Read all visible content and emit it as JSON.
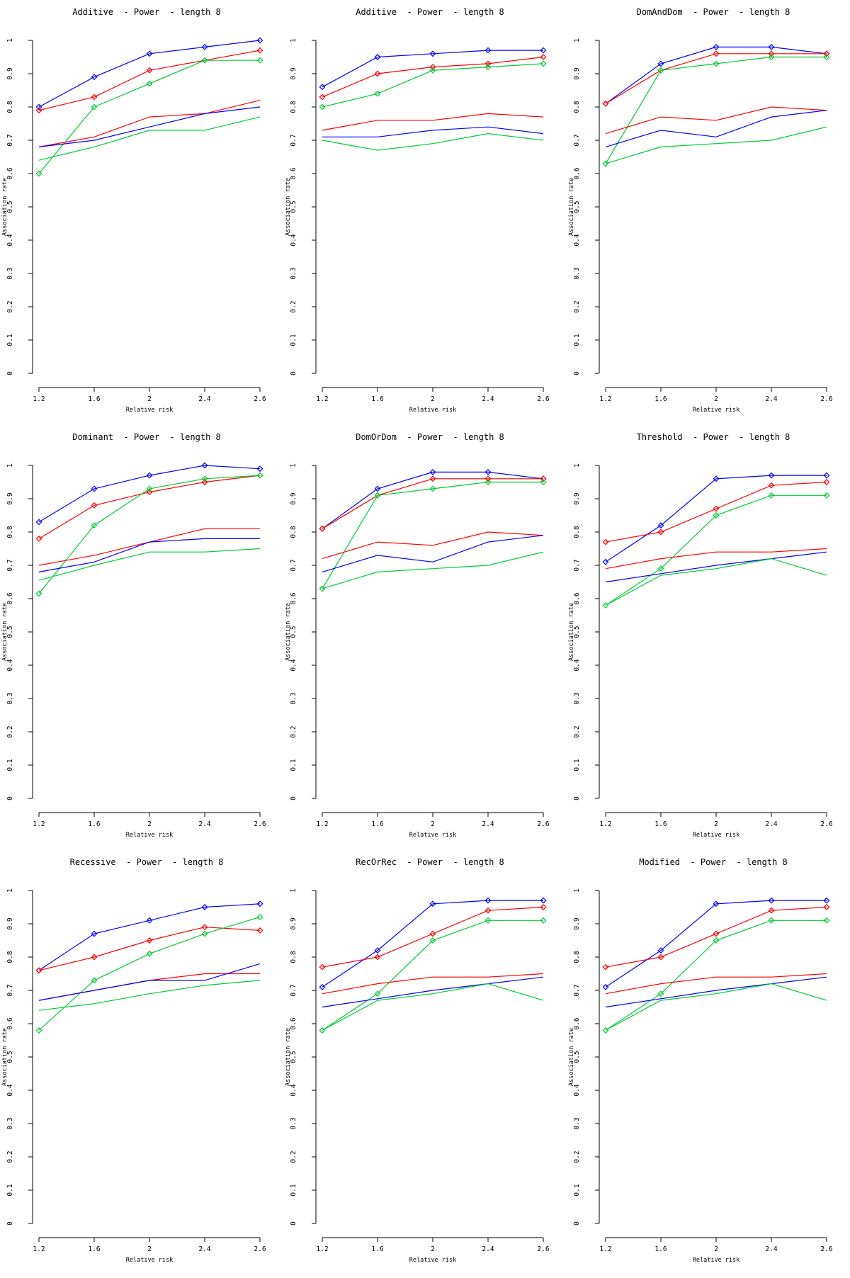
{
  "page": {
    "background": "#ffffff",
    "description": "3x3 grid of R power-simulation line plots"
  },
  "colors": {
    "blue": "#0000FF",
    "red": "#FF0000",
    "green": "#00CC33",
    "axis": "#000000"
  },
  "axes_shared": {
    "xlabel": "Relative risk",
    "ylabel": "Association rate",
    "x_tick_labels": [
      "1.2",
      "1.6",
      "2",
      "2.4",
      "2.6"
    ],
    "y_tick_labels": [
      "0",
      "0.1",
      "0.2",
      "0.3",
      "0.4",
      "0.5",
      "0.6",
      "0.7",
      "0.8",
      "0.9",
      "1"
    ],
    "ylim": [
      0,
      1
    ],
    "grid": false,
    "legend": "none"
  },
  "chart_data": [
    {
      "type": "line",
      "title": "Additive  - Power  - length 8",
      "xlabel": "Relative risk",
      "ylabel": "Association rate",
      "x": [
        1.2,
        1.6,
        2,
        2.4,
        2.6
      ],
      "x_labels": [
        "1.2",
        "1.6",
        "2",
        "2.4",
        "2.6"
      ],
      "y_tick_labels": [
        "0",
        "0.1",
        "0.2",
        "0.3",
        "0.4",
        "0.5",
        "0.6",
        "0.7",
        "0.8",
        "0.9",
        "1"
      ],
      "ylim": [
        0,
        1
      ],
      "series": [
        {
          "name": "blue-diamond",
          "color": "#0000FF",
          "marker": "diamond",
          "values": [
            0.8,
            0.89,
            0.96,
            0.98,
            1.0
          ]
        },
        {
          "name": "red-diamond",
          "color": "#FF0000",
          "marker": "diamond",
          "values": [
            0.79,
            0.83,
            0.91,
            0.94,
            0.97
          ]
        },
        {
          "name": "green-diamond",
          "color": "#00CC33",
          "marker": "diamond",
          "values": [
            0.6,
            0.8,
            0.87,
            0.94,
            0.94
          ]
        },
        {
          "name": "red-line",
          "color": "#FF0000",
          "marker": "none",
          "values": [
            0.68,
            0.71,
            0.77,
            0.78,
            0.82
          ]
        },
        {
          "name": "blue-line",
          "color": "#0000FF",
          "marker": "none",
          "values": [
            0.68,
            0.7,
            0.74,
            0.78,
            0.8
          ]
        },
        {
          "name": "green-line",
          "color": "#00CC33",
          "marker": "none",
          "values": [
            0.64,
            0.68,
            0.73,
            0.73,
            0.77
          ]
        }
      ]
    },
    {
      "type": "line",
      "title": "Additive  - Power  - length 8",
      "xlabel": "Relative risk",
      "ylabel": "Association rate",
      "x": [
        1.2,
        1.6,
        2,
        2.4,
        2.6
      ],
      "x_labels": [
        "1.2",
        "1.6",
        "2",
        "2.4",
        "2.6"
      ],
      "y_tick_labels": [
        "0",
        "0.1",
        "0.2",
        "0.3",
        "0.4",
        "0.5",
        "0.6",
        "0.7",
        "0.8",
        "0.9",
        "1"
      ],
      "ylim": [
        0,
        1
      ],
      "series": [
        {
          "name": "blue-diamond",
          "color": "#0000FF",
          "marker": "diamond",
          "values": [
            0.86,
            0.95,
            0.96,
            0.97,
            0.97
          ]
        },
        {
          "name": "red-diamond",
          "color": "#FF0000",
          "marker": "diamond",
          "values": [
            0.83,
            0.9,
            0.92,
            0.93,
            0.95
          ]
        },
        {
          "name": "green-diamond",
          "color": "#00CC33",
          "marker": "diamond",
          "values": [
            0.8,
            0.84,
            0.91,
            0.92,
            0.93
          ]
        },
        {
          "name": "red-line",
          "color": "#FF0000",
          "marker": "none",
          "values": [
            0.73,
            0.76,
            0.76,
            0.78,
            0.77
          ]
        },
        {
          "name": "blue-line",
          "color": "#0000FF",
          "marker": "none",
          "values": [
            0.71,
            0.71,
            0.73,
            0.74,
            0.72
          ]
        },
        {
          "name": "green-line",
          "color": "#00CC33",
          "marker": "none",
          "values": [
            0.7,
            0.67,
            0.69,
            0.72,
            0.7
          ]
        }
      ]
    },
    {
      "type": "line",
      "title": "DomAndDom  - Power  - length 8",
      "xlabel": "Relative risk",
      "ylabel": "Association rate",
      "x": [
        1.2,
        1.6,
        2,
        2.4,
        2.6
      ],
      "x_labels": [
        "1.2",
        "1.6",
        "2",
        "2.4",
        "2.6"
      ],
      "y_tick_labels": [
        "0",
        "0.1",
        "0.2",
        "0.3",
        "0.4",
        "0.5",
        "0.6",
        "0.7",
        "0.8",
        "0.9",
        "1"
      ],
      "ylim": [
        0,
        1
      ],
      "series": [
        {
          "name": "blue-diamond",
          "color": "#0000FF",
          "marker": "diamond",
          "values": [
            0.81,
            0.93,
            0.98,
            0.98,
            0.96
          ]
        },
        {
          "name": "red-diamond",
          "color": "#FF0000",
          "marker": "diamond",
          "values": [
            0.81,
            0.91,
            0.96,
            0.96,
            0.96
          ]
        },
        {
          "name": "green-diamond",
          "color": "#00CC33",
          "marker": "diamond",
          "values": [
            0.63,
            0.91,
            0.93,
            0.95,
            0.95
          ]
        },
        {
          "name": "red-line",
          "color": "#FF0000",
          "marker": "none",
          "values": [
            0.72,
            0.77,
            0.76,
            0.8,
            0.79
          ]
        },
        {
          "name": "blue-line",
          "color": "#0000FF",
          "marker": "none",
          "values": [
            0.68,
            0.73,
            0.71,
            0.77,
            0.79
          ]
        },
        {
          "name": "green-line",
          "color": "#00CC33",
          "marker": "none",
          "values": [
            0.63,
            0.68,
            0.69,
            0.7,
            0.74
          ]
        }
      ]
    },
    {
      "type": "line",
      "title": "Dominant  - Power  - length 8",
      "xlabel": "Relative risk",
      "ylabel": "Association rate",
      "x": [
        1.2,
        1.6,
        2,
        2.4,
        2.6
      ],
      "x_labels": [
        "1.2",
        "1.6",
        "2",
        "2.4",
        "2.6"
      ],
      "y_tick_labels": [
        "0",
        "0.1",
        "0.2",
        "0.3",
        "0.4",
        "0.5",
        "0.6",
        "0.7",
        "0.8",
        "0.9",
        "1"
      ],
      "ylim": [
        0,
        1
      ],
      "series": [
        {
          "name": "blue-diamond",
          "color": "#0000FF",
          "marker": "diamond",
          "values": [
            0.83,
            0.93,
            0.97,
            1.0,
            0.99
          ]
        },
        {
          "name": "red-diamond",
          "color": "#FF0000",
          "marker": "diamond",
          "values": [
            0.78,
            0.88,
            0.92,
            0.95,
            0.97
          ]
        },
        {
          "name": "green-diamond",
          "color": "#00CC33",
          "marker": "diamond",
          "values": [
            0.615,
            0.82,
            0.93,
            0.96,
            0.97
          ]
        },
        {
          "name": "red-line",
          "color": "#FF0000",
          "marker": "none",
          "values": [
            0.7,
            0.73,
            0.77,
            0.81,
            0.81
          ]
        },
        {
          "name": "blue-line",
          "color": "#0000FF",
          "marker": "none",
          "values": [
            0.68,
            0.71,
            0.77,
            0.78,
            0.78
          ]
        },
        {
          "name": "green-line",
          "color": "#00CC33",
          "marker": "none",
          "values": [
            0.655,
            0.7,
            0.74,
            0.74,
            0.75
          ]
        }
      ]
    },
    {
      "type": "line",
      "title": "DomOrDom  - Power  - length 8",
      "xlabel": "Relative risk",
      "ylabel": "Association rate",
      "x": [
        1.2,
        1.6,
        2,
        2.4,
        2.6
      ],
      "x_labels": [
        "1.2",
        "1.6",
        "2",
        "2.4",
        "2.6"
      ],
      "y_tick_labels": [
        "0",
        "0.1",
        "0.2",
        "0.3",
        "0.4",
        "0.5",
        "0.6",
        "0.7",
        "0.8",
        "0.9",
        "1"
      ],
      "ylim": [
        0,
        1
      ],
      "series": [
        {
          "name": "blue-diamond",
          "color": "#0000FF",
          "marker": "diamond",
          "values": [
            0.81,
            0.93,
            0.98,
            0.98,
            0.96
          ]
        },
        {
          "name": "red-diamond",
          "color": "#FF0000",
          "marker": "diamond",
          "values": [
            0.81,
            0.91,
            0.96,
            0.96,
            0.96
          ]
        },
        {
          "name": "green-diamond",
          "color": "#00CC33",
          "marker": "diamond",
          "values": [
            0.63,
            0.91,
            0.93,
            0.95,
            0.95
          ]
        },
        {
          "name": "red-line",
          "color": "#FF0000",
          "marker": "none",
          "values": [
            0.72,
            0.77,
            0.76,
            0.8,
            0.79
          ]
        },
        {
          "name": "blue-line",
          "color": "#0000FF",
          "marker": "none",
          "values": [
            0.68,
            0.73,
            0.71,
            0.77,
            0.79
          ]
        },
        {
          "name": "green-line",
          "color": "#00CC33",
          "marker": "none",
          "values": [
            0.63,
            0.68,
            0.69,
            0.7,
            0.74
          ]
        }
      ]
    },
    {
      "type": "line",
      "title": "Threshold  - Power  - length 8",
      "xlabel": "Relative risk",
      "ylabel": "Association rate",
      "x": [
        1.2,
        1.6,
        2,
        2.4,
        2.6
      ],
      "x_labels": [
        "1.2",
        "1.6",
        "2",
        "2.4",
        "2.6"
      ],
      "y_tick_labels": [
        "0",
        "0.1",
        "0.2",
        "0.3",
        "0.4",
        "0.5",
        "0.6",
        "0.7",
        "0.8",
        "0.9",
        "1"
      ],
      "ylim": [
        0,
        1
      ],
      "series": [
        {
          "name": "blue-diamond",
          "color": "#0000FF",
          "marker": "diamond",
          "values": [
            0.71,
            0.82,
            0.96,
            0.97,
            0.97
          ]
        },
        {
          "name": "red-diamond",
          "color": "#FF0000",
          "marker": "diamond",
          "values": [
            0.77,
            0.8,
            0.87,
            0.94,
            0.95
          ]
        },
        {
          "name": "green-diamond",
          "color": "#00CC33",
          "marker": "diamond",
          "values": [
            0.58,
            0.69,
            0.85,
            0.91,
            0.91
          ]
        },
        {
          "name": "red-line",
          "color": "#FF0000",
          "marker": "none",
          "values": [
            0.69,
            0.72,
            0.74,
            0.74,
            0.75
          ]
        },
        {
          "name": "blue-line",
          "color": "#0000FF",
          "marker": "none",
          "values": [
            0.65,
            0.675,
            0.7,
            0.72,
            0.74
          ]
        },
        {
          "name": "green-line",
          "color": "#00CC33",
          "marker": "none",
          "values": [
            0.58,
            0.67,
            0.69,
            0.72,
            0.67
          ]
        }
      ]
    },
    {
      "type": "line",
      "title": "Recessive  - Power  - length 8",
      "xlabel": "Relative risk",
      "ylabel": "Association rate",
      "x": [
        1.2,
        1.6,
        2,
        2.4,
        2.6
      ],
      "x_labels": [
        "1.2",
        "1.6",
        "2",
        "2.4",
        "2.6"
      ],
      "y_tick_labels": [
        "0",
        "0.1",
        "0.2",
        "0.3",
        "0.4",
        "0.5",
        "0.6",
        "0.7",
        "0.8",
        "0.9",
        "1"
      ],
      "ylim": [
        0,
        1
      ],
      "series": [
        {
          "name": "blue-diamond",
          "color": "#0000FF",
          "marker": "diamond",
          "values": [
            0.76,
            0.87,
            0.91,
            0.95,
            0.96
          ]
        },
        {
          "name": "red-diamond",
          "color": "#FF0000",
          "marker": "diamond",
          "values": [
            0.76,
            0.8,
            0.85,
            0.89,
            0.88
          ]
        },
        {
          "name": "green-diamond",
          "color": "#00CC33",
          "marker": "diamond",
          "values": [
            0.58,
            0.73,
            0.81,
            0.87,
            0.92
          ]
        },
        {
          "name": "red-line",
          "color": "#FF0000",
          "marker": "none",
          "values": [
            0.67,
            0.7,
            0.73,
            0.75,
            0.75
          ]
        },
        {
          "name": "blue-line",
          "color": "#0000FF",
          "marker": "none",
          "values": [
            0.67,
            0.7,
            0.73,
            0.73,
            0.78
          ]
        },
        {
          "name": "green-line",
          "color": "#00CC33",
          "marker": "none",
          "values": [
            0.64,
            0.66,
            0.69,
            0.715,
            0.73
          ]
        }
      ]
    },
    {
      "type": "line",
      "title": "RecOrRec  - Power  - length 8",
      "xlabel": "Relative risk",
      "ylabel": "Association rate",
      "x": [
        1.2,
        1.6,
        2,
        2.4,
        2.6
      ],
      "x_labels": [
        "1.2",
        "1.6",
        "2",
        "2.4",
        "2.6"
      ],
      "y_tick_labels": [
        "0",
        "0.1",
        "0.2",
        "0.3",
        "0.4",
        "0.5",
        "0.6",
        "0.7",
        "0.8",
        "0.9",
        "1"
      ],
      "ylim": [
        0,
        1
      ],
      "series": [
        {
          "name": "blue-diamond",
          "color": "#0000FF",
          "marker": "diamond",
          "values": [
            0.71,
            0.82,
            0.96,
            0.97,
            0.97
          ]
        },
        {
          "name": "red-diamond",
          "color": "#FF0000",
          "marker": "diamond",
          "values": [
            0.77,
            0.8,
            0.87,
            0.94,
            0.95
          ]
        },
        {
          "name": "green-diamond",
          "color": "#00CC33",
          "marker": "diamond",
          "values": [
            0.58,
            0.69,
            0.85,
            0.91,
            0.91
          ]
        },
        {
          "name": "red-line",
          "color": "#FF0000",
          "marker": "none",
          "values": [
            0.69,
            0.72,
            0.74,
            0.74,
            0.75
          ]
        },
        {
          "name": "blue-line",
          "color": "#0000FF",
          "marker": "none",
          "values": [
            0.65,
            0.675,
            0.7,
            0.72,
            0.74
          ]
        },
        {
          "name": "green-line",
          "color": "#00CC33",
          "marker": "none",
          "values": [
            0.58,
            0.67,
            0.69,
            0.72,
            0.67
          ]
        }
      ]
    },
    {
      "type": "line",
      "title": "Modified  - Power  - length 8",
      "xlabel": "Relative risk",
      "ylabel": "Association rate",
      "x": [
        1.2,
        1.6,
        2,
        2.4,
        2.6
      ],
      "x_labels": [
        "1.2",
        "1.6",
        "2",
        "2.4",
        "2.6"
      ],
      "y_tick_labels": [
        "0",
        "0.1",
        "0.2",
        "0.3",
        "0.4",
        "0.5",
        "0.6",
        "0.7",
        "0.8",
        "0.9",
        "1"
      ],
      "ylim": [
        0,
        1
      ],
      "series": [
        {
          "name": "blue-diamond",
          "color": "#0000FF",
          "marker": "diamond",
          "values": [
            0.71,
            0.82,
            0.96,
            0.97,
            0.97
          ]
        },
        {
          "name": "red-diamond",
          "color": "#FF0000",
          "marker": "diamond",
          "values": [
            0.77,
            0.8,
            0.87,
            0.94,
            0.95
          ]
        },
        {
          "name": "green-diamond",
          "color": "#00CC33",
          "marker": "diamond",
          "values": [
            0.58,
            0.69,
            0.85,
            0.91,
            0.91
          ]
        },
        {
          "name": "red-line",
          "color": "#FF0000",
          "marker": "none",
          "values": [
            0.69,
            0.72,
            0.74,
            0.74,
            0.75
          ]
        },
        {
          "name": "blue-line",
          "color": "#0000FF",
          "marker": "none",
          "values": [
            0.65,
            0.675,
            0.7,
            0.72,
            0.74
          ]
        },
        {
          "name": "green-line",
          "color": "#00CC33",
          "marker": "none",
          "values": [
            0.58,
            0.67,
            0.69,
            0.72,
            0.67
          ]
        }
      ]
    }
  ]
}
